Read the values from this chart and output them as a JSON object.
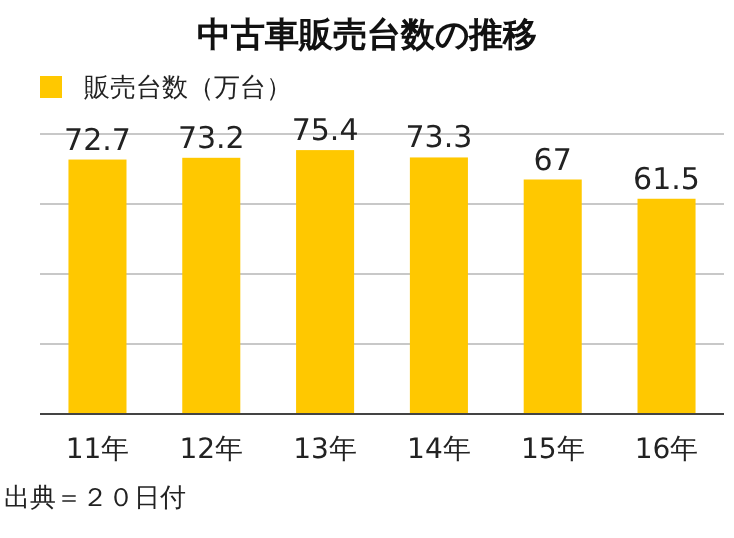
{
  "chart_data": {
    "type": "bar",
    "title": "中古車販売台数の推移",
    "categories": [
      "11年",
      "12年",
      "13年",
      "14年",
      "15年",
      "16年"
    ],
    "series": [
      {
        "name": "販売台数（万台）",
        "color": "#ffc800",
        "values": [
          72.7,
          73.2,
          75.4,
          73.3,
          67,
          61.5
        ]
      }
    ],
    "ylim": [
      0,
      80
    ],
    "yticks": [
      {
        "value": 0,
        "label": null
      },
      {
        "value": 20,
        "label": null
      },
      {
        "value": 40,
        "label": null
      },
      {
        "value": 60,
        "label": null
      },
      {
        "value": 80,
        "label": null
      }
    ],
    "tick_labels": "x",
    "grid": "y",
    "legend": "top left",
    "data_labels": true,
    "annotations": [
      "出典＝２０日付"
    ]
  }
}
